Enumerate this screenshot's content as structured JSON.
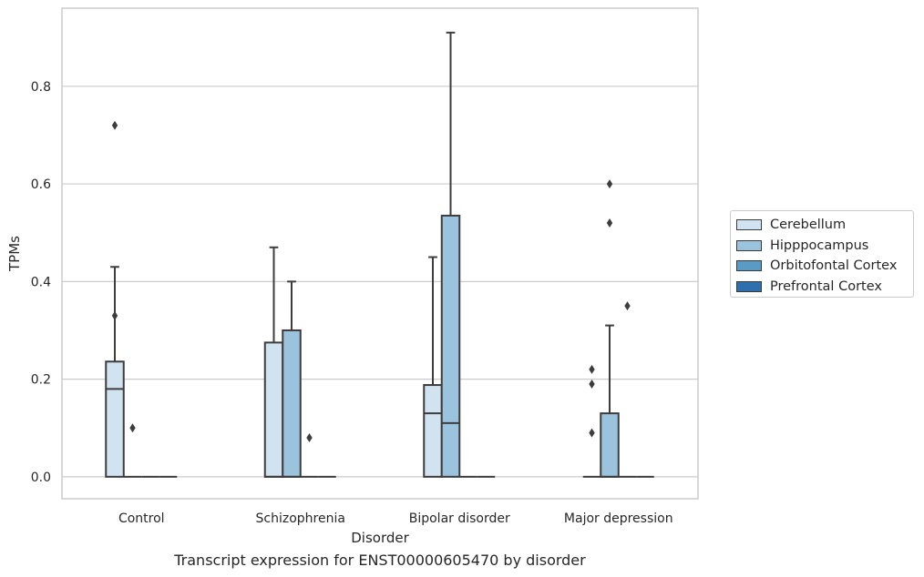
{
  "chart_data": {
    "type": "box",
    "title": "Transcript expression for ENST00000605470 by disorder",
    "xlabel": "Disorder",
    "ylabel": "TPMs",
    "ylim": [
      -0.045,
      0.96
    ],
    "yticks": [
      0.0,
      0.2,
      0.4,
      0.6,
      0.8
    ],
    "ytick_labels": [
      "0.0",
      "0.2",
      "0.4",
      "0.6",
      "0.8"
    ],
    "grid": "horizontal",
    "legend_position": "right",
    "categories": [
      "Control",
      "Schizophrenia",
      "Bipolar disorder",
      "Major depression"
    ],
    "series": [
      {
        "name": "Cerebellum",
        "color": "#d1e2f0",
        "boxes": [
          {
            "q1": 0.0,
            "median": 0.18,
            "q3": 0.236,
            "whisker_low": 0.0,
            "whisker_high": 0.43,
            "outliers": [
              0.72,
              0.33
            ]
          },
          {
            "q1": 0.0,
            "median": 0.0,
            "q3": 0.275,
            "whisker_low": 0.0,
            "whisker_high": 0.47,
            "outliers": []
          },
          {
            "q1": 0.0,
            "median": 0.13,
            "q3": 0.188,
            "whisker_low": 0.0,
            "whisker_high": 0.45,
            "outliers": []
          },
          {
            "q1": 0.0,
            "median": 0.0,
            "q3": 0.0,
            "whisker_low": 0.0,
            "whisker_high": 0.0,
            "outliers": [
              0.22,
              0.19,
              0.09
            ]
          }
        ]
      },
      {
        "name": "Hipppocampus",
        "color": "#9cc3de",
        "boxes": [
          {
            "q1": 0.0,
            "median": 0.0,
            "q3": 0.0,
            "whisker_low": 0.0,
            "whisker_high": 0.0,
            "outliers": [
              0.1
            ]
          },
          {
            "q1": 0.0,
            "median": 0.0,
            "q3": 0.3,
            "whisker_low": 0.0,
            "whisker_high": 0.4,
            "outliers": []
          },
          {
            "q1": 0.0,
            "median": 0.11,
            "q3": 0.535,
            "whisker_low": 0.0,
            "whisker_high": 0.91,
            "outliers": []
          },
          {
            "q1": 0.0,
            "median": 0.0,
            "q3": 0.13,
            "whisker_low": 0.0,
            "whisker_high": 0.31,
            "outliers": [
              0.6,
              0.52
            ]
          }
        ]
      },
      {
        "name": "Orbitofontal Cortex",
        "color": "#5a9ac7",
        "boxes": [
          {
            "q1": 0.0,
            "median": 0.0,
            "q3": 0.0,
            "whisker_low": 0.0,
            "whisker_high": 0.0,
            "outliers": []
          },
          {
            "q1": 0.0,
            "median": 0.0,
            "q3": 0.0,
            "whisker_low": 0.0,
            "whisker_high": 0.0,
            "outliers": [
              0.08
            ]
          },
          {
            "q1": 0.0,
            "median": 0.0,
            "q3": 0.0,
            "whisker_low": 0.0,
            "whisker_high": 0.0,
            "outliers": []
          },
          {
            "q1": 0.0,
            "median": 0.0,
            "q3": 0.0,
            "whisker_low": 0.0,
            "whisker_high": 0.0,
            "outliers": [
              0.35
            ]
          }
        ]
      },
      {
        "name": "Prefrontal Cortex",
        "color": "#2f6fad",
        "boxes": [
          {
            "q1": 0.0,
            "median": 0.0,
            "q3": 0.0,
            "whisker_low": 0.0,
            "whisker_high": 0.0,
            "outliers": []
          },
          {
            "q1": 0.0,
            "median": 0.0,
            "q3": 0.0,
            "whisker_low": 0.0,
            "whisker_high": 0.0,
            "outliers": []
          },
          {
            "q1": 0.0,
            "median": 0.0,
            "q3": 0.0,
            "whisker_low": 0.0,
            "whisker_high": 0.0,
            "outliers": []
          },
          {
            "q1": 0.0,
            "median": 0.0,
            "q3": 0.0,
            "whisker_low": 0.0,
            "whisker_high": 0.0,
            "outliers": []
          }
        ]
      }
    ],
    "colors": {
      "box_edge": "#3d3d3d",
      "grid": "#cccccc",
      "frame": "#cccccc"
    }
  }
}
